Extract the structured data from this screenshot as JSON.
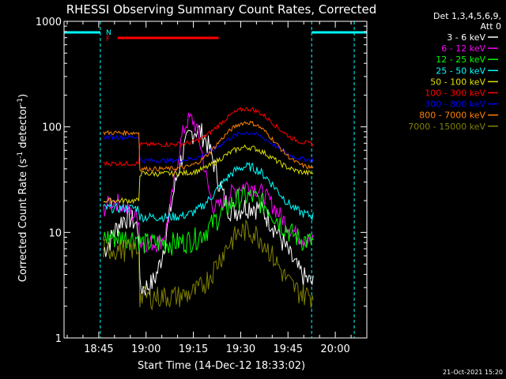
{
  "chart_data": {
    "type": "line",
    "title": "RHESSI Observing Summary Count Rates, Corrected",
    "xlabel": "Start Time (14-Dec-12 18:33:02)",
    "ylabel_main": "Corrected Count Rate (s",
    "ylabel_sup1": "-1",
    "ylabel_mid": " detector",
    "ylabel_sup2": "-1",
    "ylabel_end": ")",
    "ylog": true,
    "ylim": [
      1,
      1000
    ],
    "xlim_minutes_from_1830": [
      4,
      100
    ],
    "yticks": [
      "1",
      "10",
      "100",
      "1000"
    ],
    "xticks": [
      {
        "label": "18:45",
        "min": 15
      },
      {
        "label": "19:00",
        "min": 30
      },
      {
        "label": "19:15",
        "min": 45
      },
      {
        "label": "19:30",
        "min": 60
      },
      {
        "label": "19:45",
        "min": 75
      },
      {
        "label": "20:00",
        "min": 90
      }
    ],
    "legend_header": [
      "Det 1,3,4,5,6,9,",
      "Att 0"
    ],
    "legend_position": "right",
    "series": [
      {
        "name": "3 - 6 keV",
        "color": "#ffffff"
      },
      {
        "name": "6 - 12 keV",
        "color": "#ff00ff"
      },
      {
        "name": "12 - 25 keV",
        "color": "#00ff00"
      },
      {
        "name": "25 - 50 keV",
        "color": "#00ffff"
      },
      {
        "name": "50 - 100 keV",
        "color": "#e0e000"
      },
      {
        "name": "100 - 300 keV",
        "color": "#ff0000"
      },
      {
        "name": "300 - 800 keV",
        "color": "#0000ff"
      },
      {
        "name": "800 - 7000 keV",
        "color": "#ff8000"
      },
      {
        "name": "7000 - 15000 keV",
        "color": "#808000"
      }
    ],
    "annotations": {
      "night_label": "N",
      "flag_label": "F",
      "saa_label_color": "#00ffff",
      "flag_color": "#ff0000"
    }
  },
  "footer": {
    "timestamp": "21-Oct-2021 15:20"
  }
}
